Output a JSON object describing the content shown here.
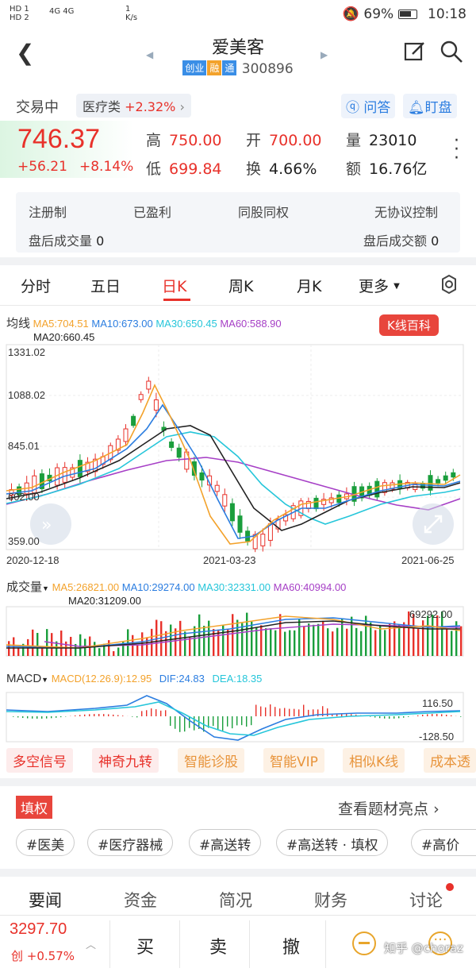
{
  "status": {
    "sim1": "HD 1",
    "sim2": "HD 2",
    "net": "4G 4G",
    "speed": "1 K/s",
    "battery": "69%",
    "time": "10:18"
  },
  "header": {
    "title": "爱美客",
    "tags": [
      "创业",
      "融",
      "通"
    ],
    "code": "300896"
  },
  "info": {
    "state": "交易中",
    "sector": "医疗类",
    "sector_chg": "+2.32%",
    "qa": "问答",
    "watch": "盯盘"
  },
  "quote": {
    "price": "746.37",
    "change": "+56.21",
    "change_pct": "+8.14%",
    "high_label": "高",
    "high": "750.00",
    "open_label": "开",
    "open": "700.00",
    "vol_label": "量",
    "vol": "23010",
    "low_label": "低",
    "low": "699.84",
    "turnover_label": "换",
    "turnover": "4.66%",
    "amount_label": "额",
    "amount": "16.76亿"
  },
  "features": {
    "row1": [
      "注册制",
      "已盈利",
      "同股同权",
      "无协议控制"
    ],
    "after_vol_label": "盘后成交量",
    "after_vol": "0",
    "after_amt_label": "盘后成交额",
    "after_amt": "0"
  },
  "tabs": [
    "分时",
    "五日",
    "日K",
    "周K",
    "月K",
    "更多"
  ],
  "kline": {
    "label": "均线",
    "ma5": "MA5:704.51",
    "ma10": "MA10:673.00",
    "ma30": "MA30:650.45",
    "ma60": "MA60:588.90",
    "ma20": "MA20:660.45",
    "baike": "K线百科",
    "y_labels": [
      "1331.02",
      "1088.02",
      "845.01",
      "602.00",
      "359.00"
    ],
    "x_labels": [
      "2020-12-18",
      "2021-03-23",
      "2021-06-25"
    ]
  },
  "volume": {
    "label": "成交量",
    "ma5": "MA5:26821.00",
    "ma10": "MA10:29274.00",
    "ma30": "MA30:32331.00",
    "ma60": "MA60:40994.00",
    "ma20": "MA20:31209.00",
    "max_label": "69292.00"
  },
  "macd": {
    "label": "MACD",
    "macd": "MACD(12.26.9):12.95",
    "dif": "DIF:24.83",
    "dea": "DEA:18.35",
    "top": "116.50",
    "bottom": "-128.50"
  },
  "functions": [
    "多空信号",
    "神奇九转",
    "智能诊股",
    "智能VIP",
    "相似K线",
    "成本透"
  ],
  "topics": {
    "badge": "填权",
    "link": "查看题材亮点",
    "chips": [
      "#医美",
      "#医疗器械",
      "#高送转",
      "#高送转 · 填权",
      "#高价"
    ]
  },
  "bottom_tabs": [
    "要闻",
    "资金",
    "简况",
    "财务",
    "讨论"
  ],
  "trade": {
    "index_value": "3297.70",
    "index_tag": "创",
    "index_chg": "+0.57%",
    "buy": "买",
    "sell": "卖",
    "cancel": "撤",
    "watermark": "知乎 @choraz"
  },
  "colors": {
    "red": "#e8312a",
    "green": "#1a9e3c",
    "ma5": "#f3a22b",
    "ma10": "#2b7de0",
    "ma30": "#26c6da",
    "ma60": "#a63fc6",
    "ma20": "#222222"
  }
}
